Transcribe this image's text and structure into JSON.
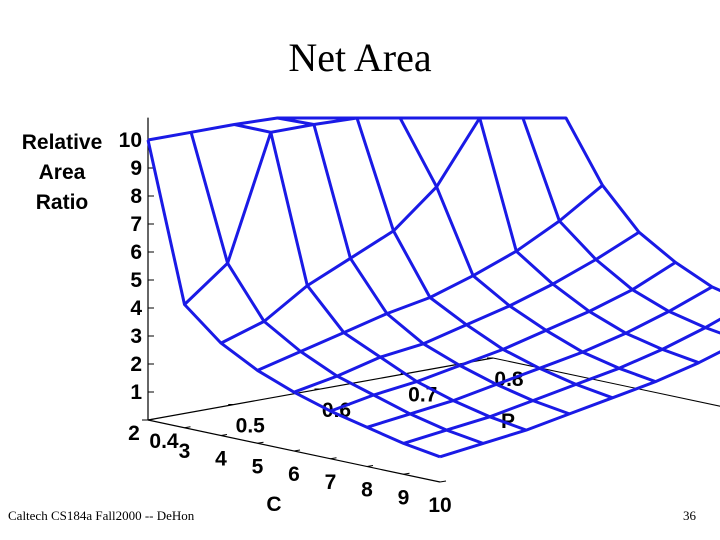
{
  "slide": {
    "title": "Net Area",
    "footer_left": "Caltech CS184a Fall2000 -- DeHon",
    "page_number": "36"
  },
  "chart_data": {
    "type": "surface3d",
    "zlabel_lines": [
      "Relative",
      "Area",
      "Ratio"
    ],
    "xlabel": "C",
    "ylabel": "P",
    "z_ticks": [
      "10",
      "9",
      "8",
      "7",
      "6",
      "5",
      "4",
      "3",
      "2",
      "1"
    ],
    "c_ticks": [
      "2",
      "3",
      "4",
      "5",
      "6",
      "7",
      "8",
      "9",
      "10"
    ],
    "p_ticks": [
      "0.4",
      "0.5",
      "0.6",
      "0.7",
      "0.8"
    ],
    "zlim": [
      0,
      10
    ],
    "c_range": [
      2,
      10
    ],
    "p_range": [
      0.4,
      0.8
    ],
    "line_color": "#1a1ae6",
    "c_values": [
      2,
      3,
      4,
      5,
      6,
      7,
      8,
      9,
      10
    ],
    "p_values": [
      0.4,
      0.45,
      0.5,
      0.55,
      0.6,
      0.65,
      0.7,
      0.75,
      0.8
    ],
    "z_values": [
      [
        10.0,
        10.0,
        10.0,
        10.0,
        10.0,
        10.0,
        10.0,
        10.0,
        10.0
      ],
      [
        4.4,
        5.6,
        10.0,
        10.0,
        10.0,
        10.0,
        10.0,
        10.0,
        10.0
      ],
      [
        3.3,
        3.8,
        4.8,
        5.5,
        6.2,
        7.5,
        10.0,
        10.0,
        10.0
      ],
      [
        2.6,
        3.0,
        3.4,
        3.8,
        4.1,
        4.6,
        5.2,
        6.0,
        7.0
      ],
      [
        2.1,
        2.4,
        2.8,
        3.0,
        3.4,
        3.8,
        4.3,
        4.9,
        5.6
      ],
      [
        1.7,
        2.0,
        2.2,
        2.5,
        2.8,
        3.2,
        3.6,
        4.1,
        4.8
      ],
      [
        1.4,
        1.6,
        1.8,
        2.1,
        2.4,
        2.7,
        3.1,
        3.6,
        4.2
      ],
      [
        1.1,
        1.3,
        1.5,
        1.8,
        2.1,
        2.4,
        2.8,
        3.3,
        3.9
      ],
      [
        0.9,
        1.1,
        1.3,
        1.6,
        1.9,
        2.2,
        2.6,
        3.1,
        3.7
      ]
    ]
  }
}
